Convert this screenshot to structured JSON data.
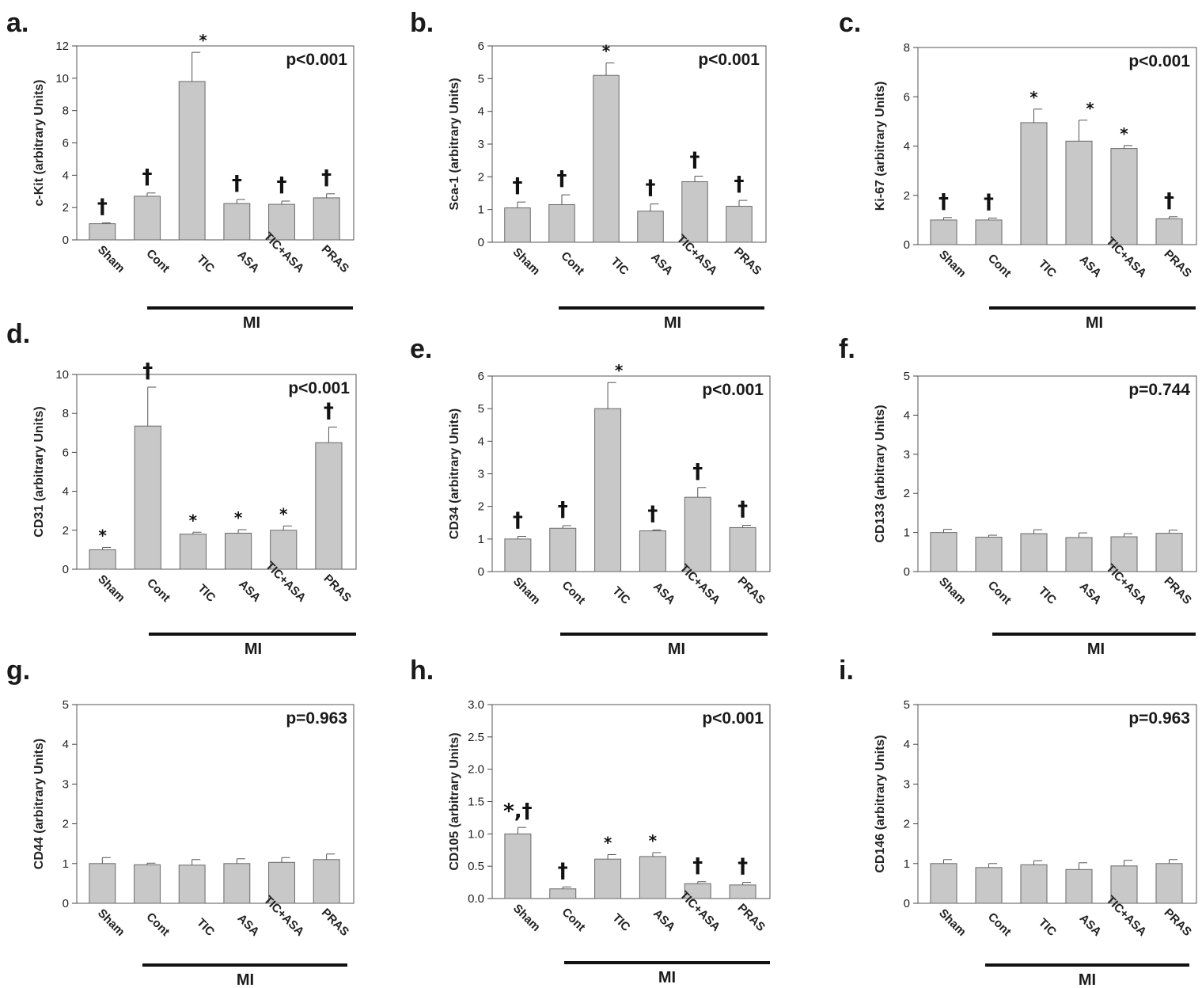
{
  "chart_data": [
    {
      "panel": "a.",
      "type": "bar",
      "ylabel": "c-Kit (arbitrary Units)",
      "ylim": [
        0,
        12
      ],
      "yticks": [
        0,
        2,
        4,
        6,
        8,
        10,
        12
      ],
      "categories": [
        "Sham",
        "Cont",
        "TIC",
        "ASA",
        "TIC+ASA",
        "PRAS"
      ],
      "values": [
        1.0,
        2.7,
        9.8,
        2.25,
        2.2,
        2.6
      ],
      "errors": [
        0.05,
        0.2,
        1.8,
        0.25,
        0.2,
        0.25
      ],
      "annotations": [
        "†",
        "†",
        "*",
        "†",
        "†",
        "†"
      ],
      "pvalue": "p<0.001",
      "group_label": "MI"
    },
    {
      "panel": "b.",
      "type": "bar",
      "ylabel": "Sca-1 (arbitrary Units)",
      "ylim": [
        0,
        6
      ],
      "yticks": [
        0,
        1,
        2,
        3,
        4,
        5,
        6
      ],
      "categories": [
        "Sham",
        "Cont",
        "TIC",
        "ASA",
        "TIC+ASA",
        "PRAS"
      ],
      "values": [
        1.05,
        1.15,
        5.1,
        0.95,
        1.85,
        1.1
      ],
      "errors": [
        0.18,
        0.3,
        0.38,
        0.22,
        0.17,
        0.18
      ],
      "annotations": [
        "†",
        "†",
        "*",
        "†",
        "†",
        "†"
      ],
      "pvalue": "p<0.001",
      "group_label": "MI"
    },
    {
      "panel": "c.",
      "type": "bar",
      "ylabel": "Ki-67 (arbitrary Units)",
      "ylim": [
        0,
        8
      ],
      "yticks": [
        0,
        2,
        4,
        6,
        8
      ],
      "categories": [
        "Sham",
        "Cont",
        "TIC",
        "ASA",
        "TIC+ASA",
        "PRAS"
      ],
      "values": [
        1.0,
        1.0,
        4.95,
        4.2,
        3.9,
        1.05
      ],
      "errors": [
        0.1,
        0.08,
        0.55,
        0.85,
        0.12,
        0.08
      ],
      "annotations": [
        "†",
        "†",
        "*",
        "*",
        "*",
        "†"
      ],
      "pvalue": "p<0.001",
      "group_label": "MI"
    },
    {
      "panel": "d.",
      "type": "bar",
      "ylabel": "CD31 (arbitrary Units)",
      "ylim": [
        0,
        10
      ],
      "yticks": [
        0,
        2,
        4,
        6,
        8,
        10
      ],
      "categories": [
        "Sham",
        "Cont",
        "TIC",
        "ASA",
        "TIC+ASA",
        "PRAS"
      ],
      "values": [
        1.0,
        7.35,
        1.8,
        1.85,
        2.0,
        6.5
      ],
      "errors": [
        0.12,
        2.0,
        0.1,
        0.18,
        0.22,
        0.8
      ],
      "annotations": [
        "*",
        "†",
        "*",
        "*",
        "*",
        "†"
      ],
      "pvalue": "p<0.001",
      "group_label": "MI"
    },
    {
      "panel": "e.",
      "type": "bar",
      "ylabel": "CD34 (arbitrary Units)",
      "ylim": [
        0,
        6
      ],
      "yticks": [
        0,
        1,
        2,
        3,
        4,
        5,
        6
      ],
      "categories": [
        "Sham",
        "Cont",
        "TIC",
        "ASA",
        "TIC+ASA",
        "PRAS"
      ],
      "values": [
        1.0,
        1.33,
        5.0,
        1.25,
        2.28,
        1.35
      ],
      "errors": [
        0.08,
        0.08,
        0.8,
        0.03,
        0.3,
        0.07
      ],
      "annotations": [
        "†",
        "†",
        "*",
        "†",
        "†",
        "†"
      ],
      "pvalue": "p<0.001",
      "group_label": "MI"
    },
    {
      "panel": "f.",
      "type": "bar",
      "ylabel": "CD133 (arbitrary Units)",
      "ylim": [
        0,
        5
      ],
      "yticks": [
        0,
        1,
        2,
        3,
        4,
        5
      ],
      "categories": [
        "Sham",
        "Cont",
        "TIC",
        "ASA",
        "TIC+ASA",
        "PRAS"
      ],
      "values": [
        1.0,
        0.88,
        0.97,
        0.87,
        0.89,
        0.98
      ],
      "errors": [
        0.08,
        0.05,
        0.1,
        0.12,
        0.08,
        0.08
      ],
      "annotations": [
        "",
        "",
        "",
        "",
        "",
        ""
      ],
      "pvalue": "p=0.744",
      "group_label": "MI"
    },
    {
      "panel": "g.",
      "type": "bar",
      "ylabel": "CD44 (arbitrary Units)",
      "ylim": [
        0,
        5
      ],
      "yticks": [
        0,
        1,
        2,
        3,
        4,
        5
      ],
      "categories": [
        "Sham",
        "Cont",
        "TIC",
        "ASA",
        "TIC+ASA",
        "PRAS"
      ],
      "values": [
        1.0,
        0.97,
        0.96,
        1.0,
        1.03,
        1.1
      ],
      "errors": [
        0.15,
        0.04,
        0.14,
        0.12,
        0.12,
        0.14
      ],
      "annotations": [
        "",
        "",
        "",
        "",
        "",
        ""
      ],
      "pvalue": "p=0.963",
      "group_label": "MI"
    },
    {
      "panel": "h.",
      "type": "bar",
      "ylabel": "CD105 (arbitrary Units)",
      "ylim": [
        0,
        3.0
      ],
      "yticks": [
        0.0,
        0.5,
        1.0,
        1.5,
        2.0,
        2.5,
        3.0
      ],
      "ytick_labels": [
        "0.0",
        "0.5",
        "1.0",
        "1.5",
        "2.0",
        "2.5",
        "3.0"
      ],
      "categories": [
        "Sham",
        "Cont",
        "TIC",
        "ASA",
        "TIC+ASA",
        "PRAS"
      ],
      "values": [
        1.0,
        0.15,
        0.61,
        0.65,
        0.23,
        0.21
      ],
      "errors": [
        0.1,
        0.03,
        0.07,
        0.06,
        0.03,
        0.04
      ],
      "annotations": [
        "*,†",
        "†",
        "*",
        "*",
        "†",
        "†"
      ],
      "pvalue": "p<0.001",
      "group_label": "MI"
    },
    {
      "panel": "i.",
      "type": "bar",
      "ylabel": "CD146 (arbitrary Units)",
      "ylim": [
        0,
        5
      ],
      "yticks": [
        0,
        1,
        2,
        3,
        4,
        5
      ],
      "categories": [
        "Sham",
        "Cont",
        "TIC",
        "ASA",
        "TIC+ASA",
        "PRAS"
      ],
      "values": [
        1.0,
        0.9,
        0.97,
        0.85,
        0.94,
        1.0
      ],
      "errors": [
        0.1,
        0.1,
        0.1,
        0.17,
        0.14,
        0.1
      ],
      "annotations": [
        "",
        "",
        "",
        "",
        "",
        ""
      ],
      "pvalue": "p=0.963",
      "group_label": "MI"
    }
  ]
}
